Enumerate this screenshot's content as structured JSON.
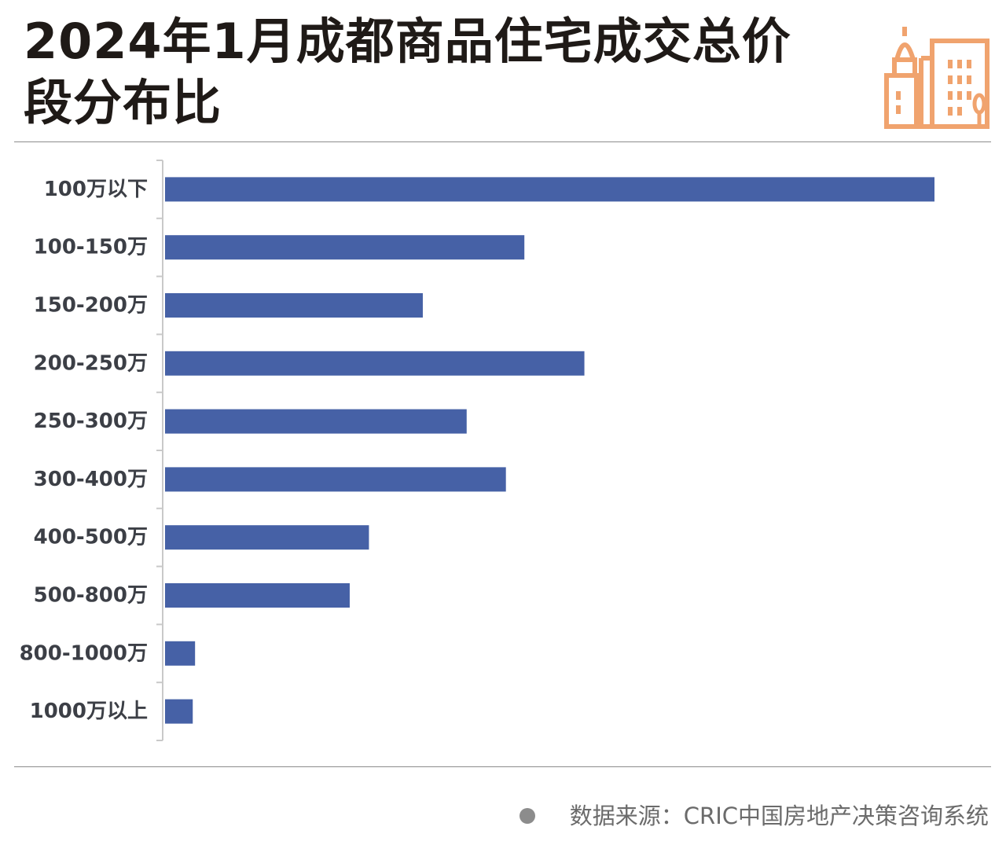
{
  "header": {
    "title_line1": "2024年1月成都商品住宅成交总价",
    "title_line2": "段分布比"
  },
  "colors": {
    "bar": "#4661a6",
    "icon": "#f0a36e",
    "title": "#1f1a17",
    "axis": "#c9c9c9",
    "label": "#3c3f46"
  },
  "icons": {
    "logo": "buildings-icon",
    "bullet": "dot-icon"
  },
  "footer": {
    "source": "数据来源：CRIC中国房地产决策咨询系统"
  },
  "chart_data": {
    "type": "bar",
    "orientation": "horizontal",
    "categories": [
      "100万以下",
      "100-150万",
      "150-200万",
      "200-250万",
      "250-300万",
      "300-400万",
      "400-500万",
      "500-800万",
      "800-1000万",
      "1000万以上"
    ],
    "values": [
      100,
      46.7,
      33.5,
      54.5,
      39.2,
      44.3,
      26.5,
      24.0,
      3.9,
      3.6
    ],
    "xlim": [
      0,
      100
    ],
    "grid": false,
    "legend": "none",
    "data_labels": false
  }
}
